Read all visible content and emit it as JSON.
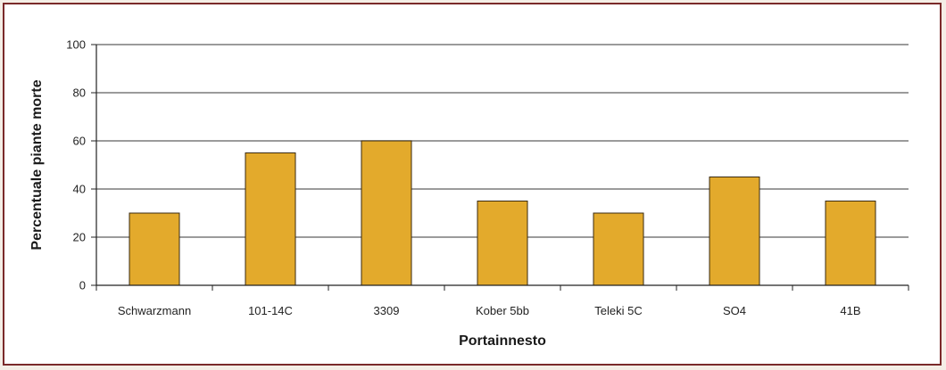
{
  "chart_data": {
    "type": "bar",
    "categories": [
      "Schwarzmann",
      "101-14C",
      "3309",
      "Kober 5bb",
      "Teleki 5C",
      "SO4",
      "41B"
    ],
    "values": [
      30,
      55,
      60,
      35,
      30,
      45,
      35
    ],
    "xlabel": "Portainnesto",
    "ylabel": "Percentuale piante morte",
    "ylim": [
      0,
      100
    ],
    "yticks": [
      0,
      20,
      40,
      60,
      80,
      100
    ],
    "grid": true,
    "colors": {
      "bar": "#e3aa2c",
      "bar_stroke": "#3a2a10",
      "grid": "#7a7a7a",
      "frame": "#7a2a2a"
    }
  }
}
